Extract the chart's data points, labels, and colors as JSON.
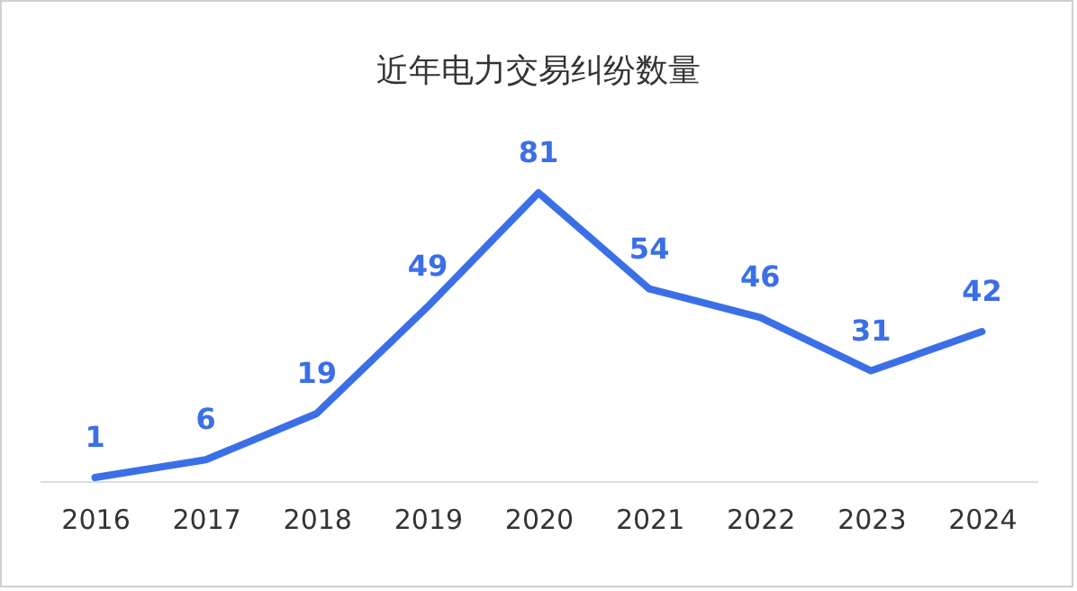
{
  "chart_data": {
    "type": "line",
    "title": "近年电力交易纠纷数量",
    "categories": [
      "2016",
      "2017",
      "2018",
      "2019",
      "2020",
      "2021",
      "2022",
      "2023",
      "2024"
    ],
    "series": [
      {
        "color": "#3b6fe8",
        "values": [
          1,
          6,
          19,
          49,
          81,
          54,
          46,
          31,
          42
        ]
      }
    ],
    "data_labels": true,
    "grid": false,
    "legend": false,
    "marker": "none",
    "tick_labels": "x"
  }
}
